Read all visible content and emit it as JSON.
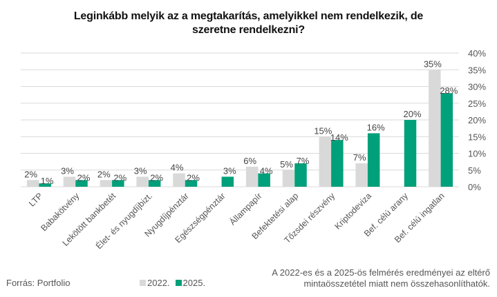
{
  "chart_data": {
    "type": "bar",
    "title_lines": [
      "Leginkább melyik az a megtakarítás, amelyikkel nem rendelkezik, de",
      "szeretne rendelkezni?"
    ],
    "categories": [
      "LTP",
      "Babakötvény",
      "Lekötött bankbetét",
      "Élet- és nyugdíjbizt.",
      "Nyugdíjpénztár",
      "Egészségpénztár",
      "Állampapír",
      "Befektetési alap",
      "Tőzsdei részvény",
      "Kriptodeviza",
      "Bef. célú arany",
      "Bef. célú ingatlan"
    ],
    "series": [
      {
        "name": "2022.",
        "color": "#d9d9d9",
        "values": [
          2,
          3,
          2,
          3,
          4,
          null,
          6,
          5,
          15,
          7,
          null,
          35
        ],
        "labels": [
          "2%",
          "3%",
          "2%",
          "3%",
          "4%",
          "",
          "6%",
          "5%",
          "15%",
          "7%",
          "",
          "35%"
        ]
      },
      {
        "name": "2025.",
        "color": "#00a07a",
        "values": [
          1,
          2,
          2,
          2,
          2,
          3,
          4,
          7,
          14,
          16,
          20,
          28
        ],
        "labels": [
          "1%",
          "2%",
          "2%",
          "2%",
          "2%",
          "3%",
          "4%",
          "7%",
          "14%",
          "16%",
          "20%",
          "28%"
        ]
      }
    ],
    "xlabel": "",
    "ylabel": "",
    "ylim": [
      0,
      40
    ],
    "yticks": [
      0,
      5,
      10,
      15,
      20,
      25,
      30,
      35,
      40
    ],
    "ytick_labels": [
      "0%",
      "5%",
      "10%",
      "15%",
      "20%",
      "25%",
      "30%",
      "35%",
      "40%"
    ],
    "y_axis_side": "right",
    "grid": true,
    "legend_position": "bottom-left",
    "source": "Forrás: Portfolio",
    "note_lines": [
      "A 2022-es és a 2025-ös felmérés eredményei az eltérő",
      "mintaösszetétel miatt nem összehasonlíthatók."
    ]
  }
}
